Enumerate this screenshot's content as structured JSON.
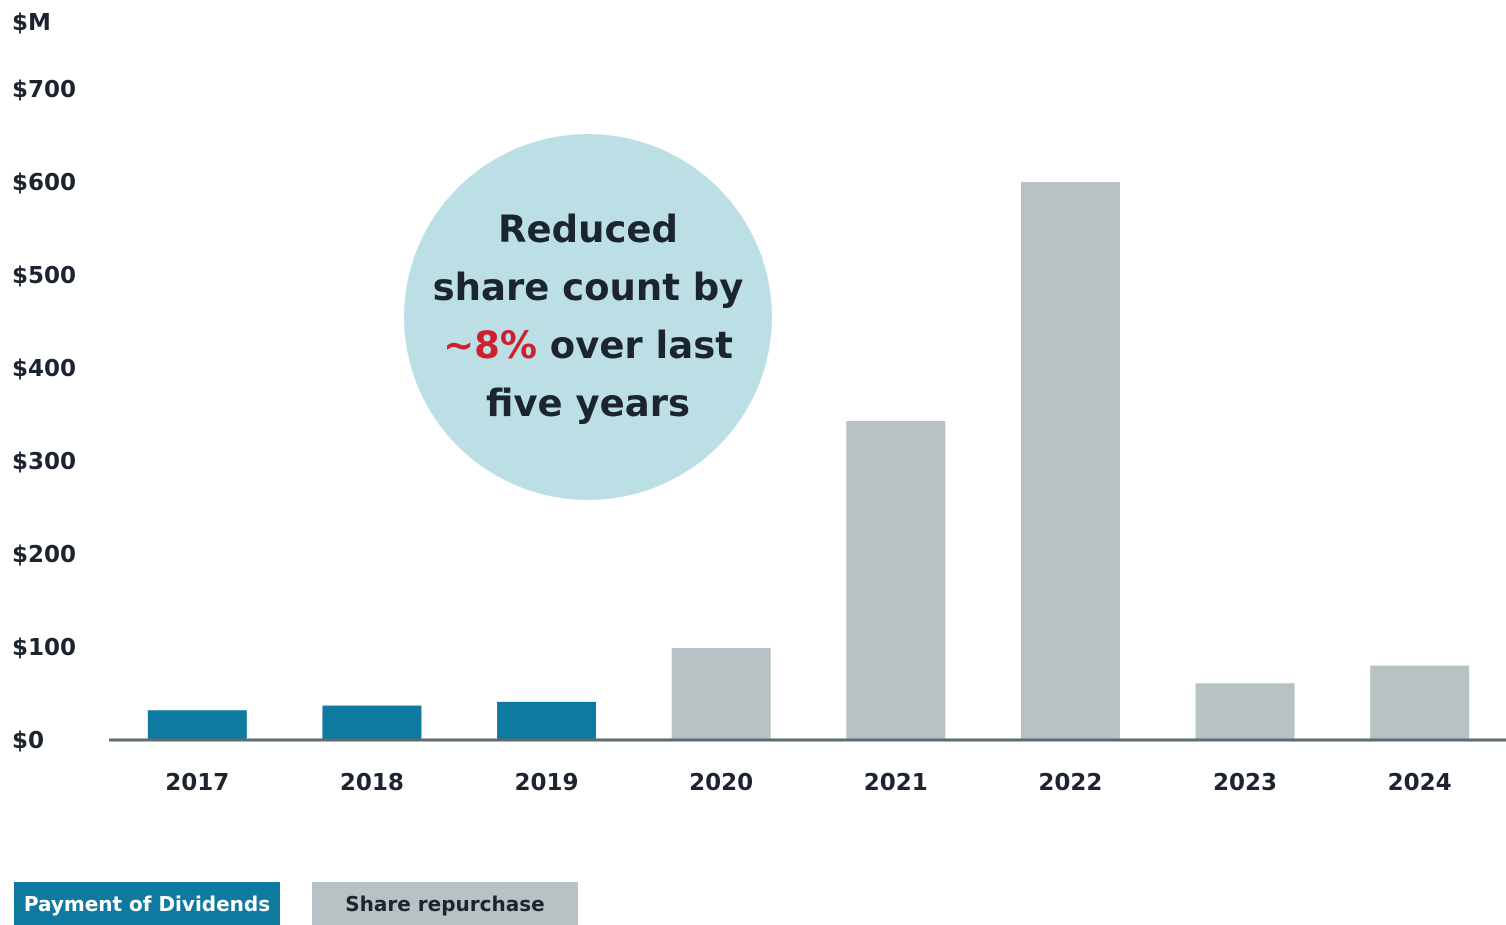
{
  "chart_data": {
    "type": "bar",
    "ylabel": "$M",
    "ylim": [
      0,
      700
    ],
    "yticks": [
      "$0",
      "$100",
      "$200",
      "$300",
      "$400",
      "$500",
      "$600",
      "$700"
    ],
    "ytick_values": [
      0,
      100,
      200,
      300,
      400,
      500,
      600,
      700
    ],
    "categories": [
      "2017",
      "2018",
      "2019",
      "2020",
      "2021",
      "2022",
      "2023",
      "2024"
    ],
    "series": [
      {
        "name": "Payment of Dividends",
        "color": "#0e7aa0",
        "values": [
          32,
          37,
          41,
          0,
          0,
          0,
          0,
          0
        ]
      },
      {
        "name": "Share repurchase",
        "color": "#b8c1c4",
        "values": [
          0,
          0,
          0,
          99,
          343,
          600,
          61,
          80
        ]
      }
    ],
    "grid": false,
    "legend": "bottom-left",
    "annotation": {
      "line1": "Reduced",
      "line2": "share count by",
      "highlight": "~8%",
      "line3_rest": " over last",
      "line4": "five years",
      "circle_color": "#bcdfe6",
      "highlight_color": "#d0202e"
    }
  },
  "colors": {
    "axis": "#5e6b6f",
    "text": "#1c2430"
  }
}
